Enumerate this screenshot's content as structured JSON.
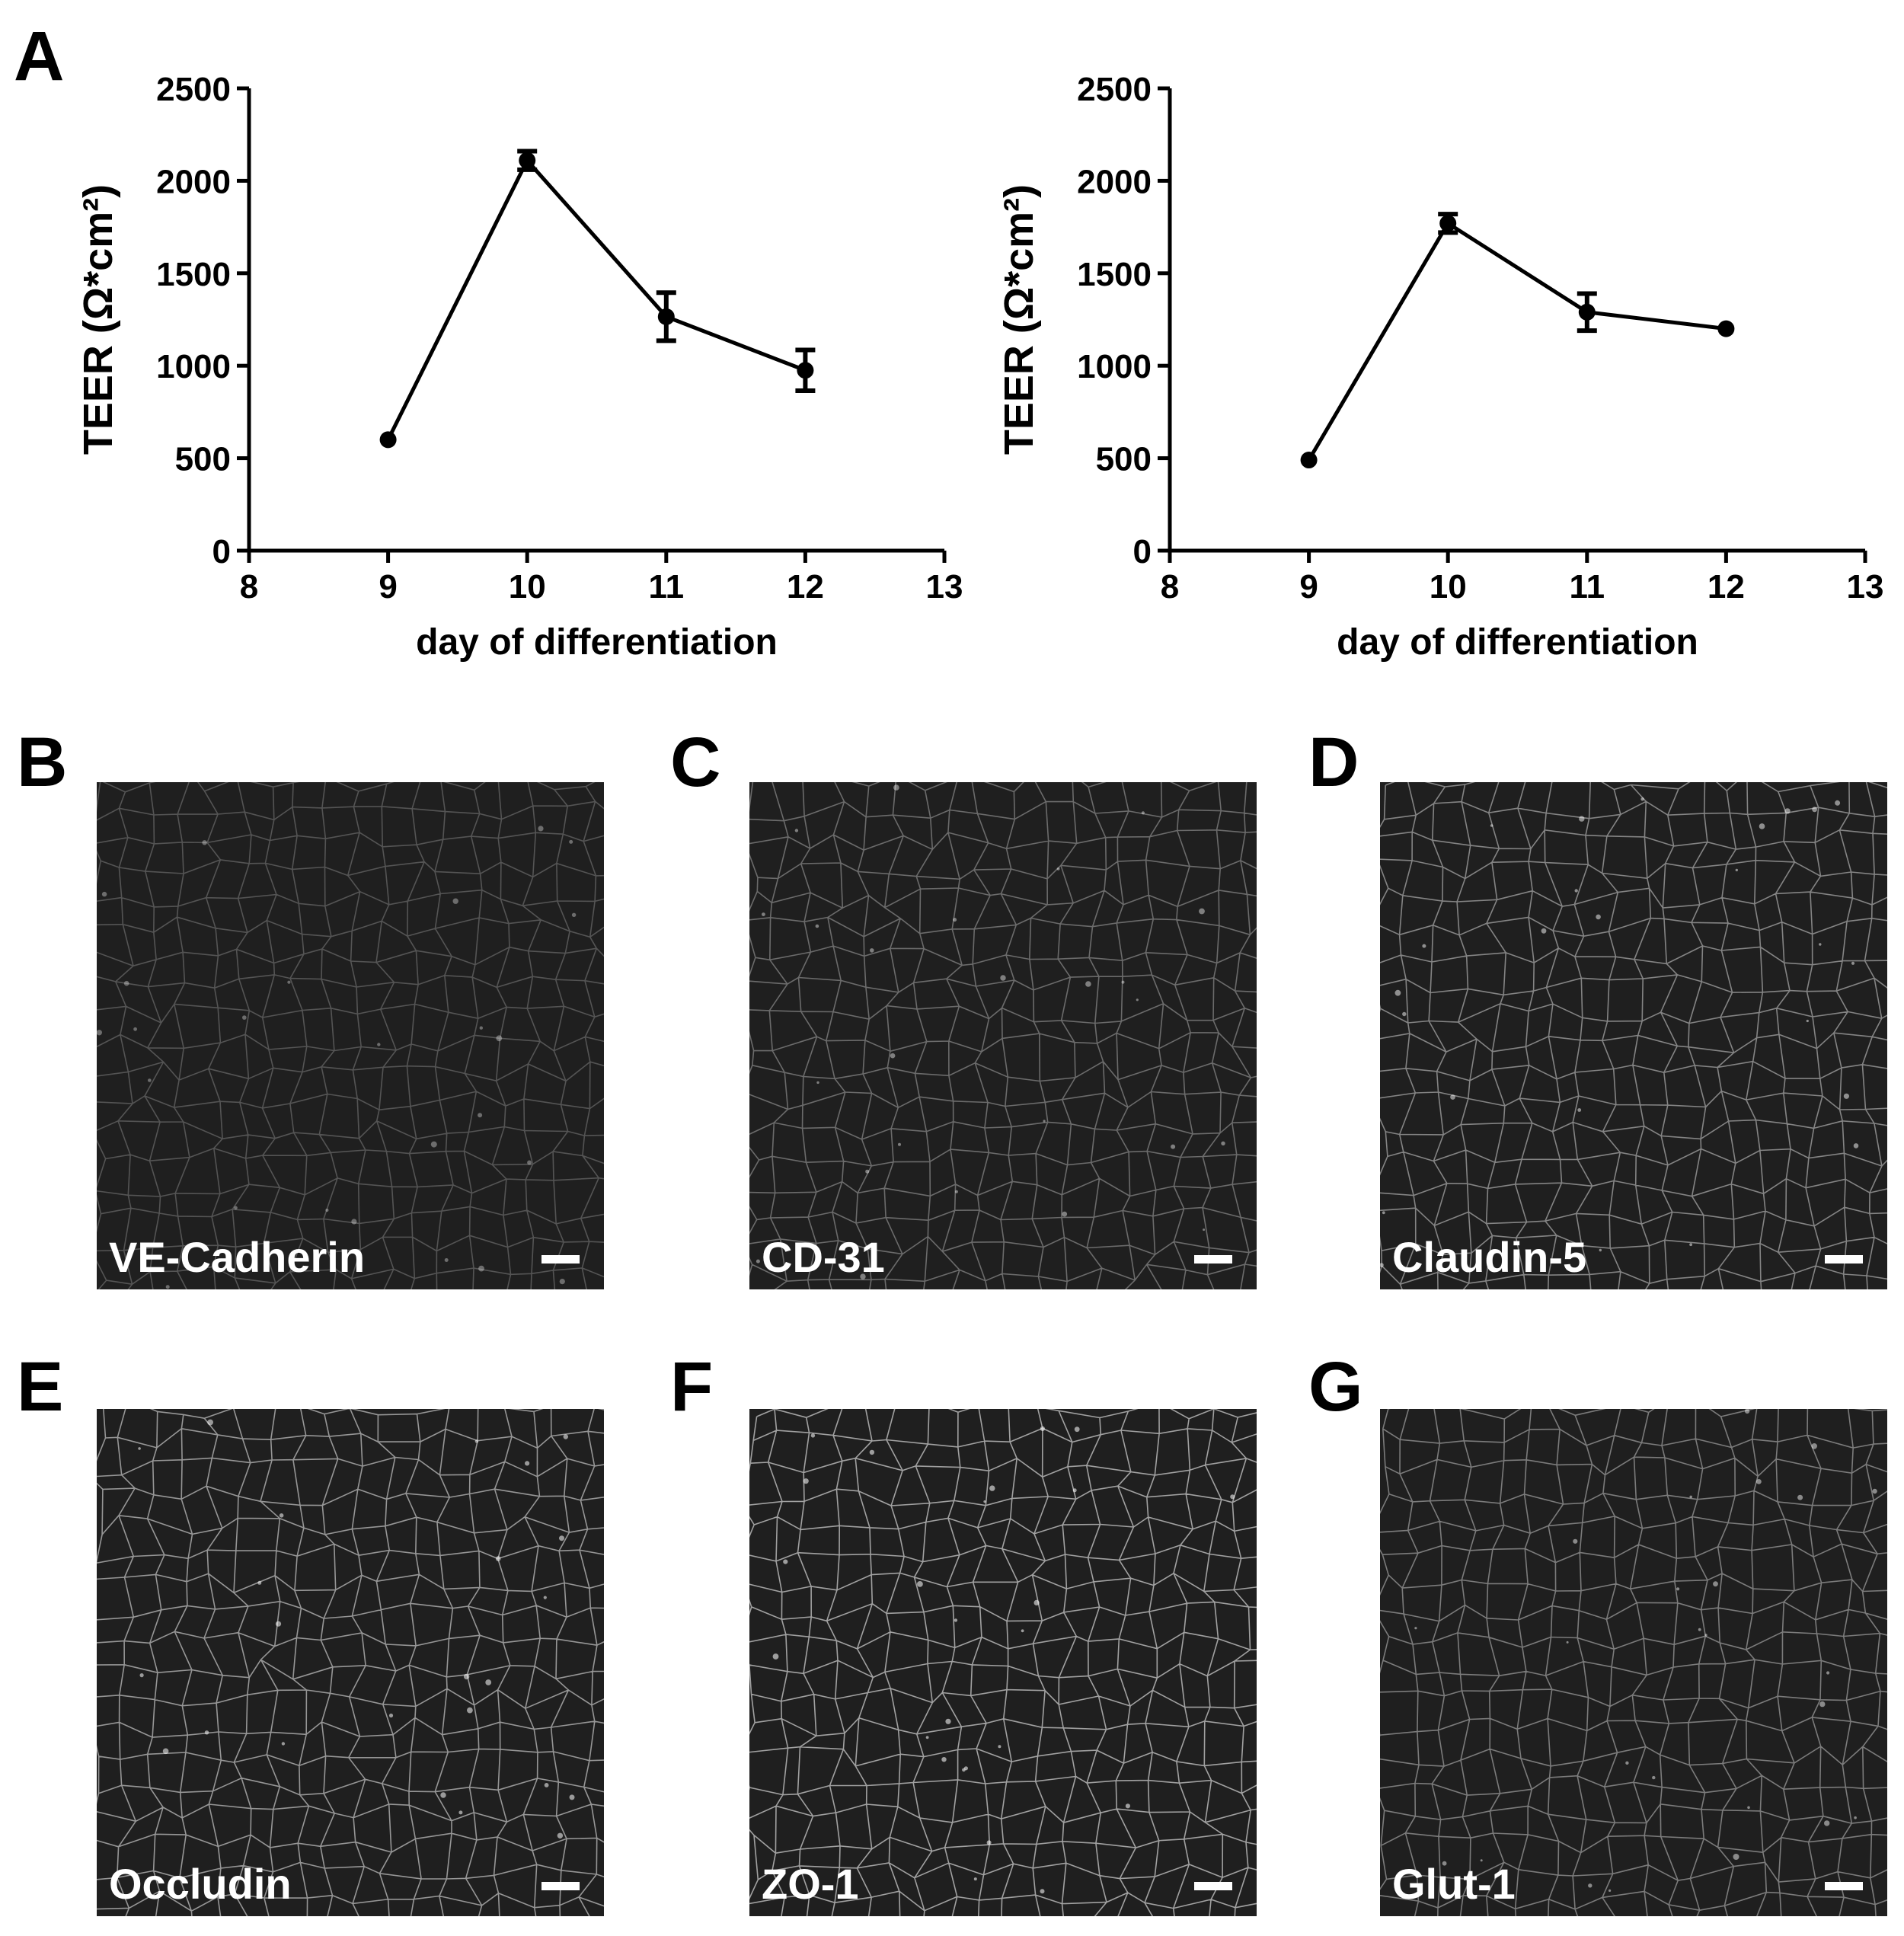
{
  "panel_letters": [
    "A",
    "B",
    "C",
    "D",
    "E",
    "F",
    "G"
  ],
  "chart_data": [
    {
      "type": "line",
      "xlabel": "day of differentiation",
      "ylabel": "TEER (Ω*cm²)",
      "xlim": [
        8,
        13
      ],
      "ylim": [
        0,
        2500
      ],
      "x_ticks": [
        8,
        9,
        10,
        11,
        12,
        13
      ],
      "y_ticks": [
        0,
        500,
        1000,
        1500,
        2000,
        2500
      ],
      "grid": false,
      "series": [
        {
          "x": [
            9,
            10,
            11,
            12
          ],
          "y": [
            600,
            2110,
            1265,
            975
          ],
          "error": [
            0,
            50,
            130,
            110
          ]
        }
      ]
    },
    {
      "type": "line",
      "xlabel": "day of differentiation",
      "ylabel": "TEER (Ω*cm²)",
      "xlim": [
        8,
        13
      ],
      "ylim": [
        0,
        2500
      ],
      "x_ticks": [
        8,
        9,
        10,
        11,
        12,
        13
      ],
      "y_ticks": [
        0,
        500,
        1000,
        1500,
        2000,
        2500
      ],
      "grid": false,
      "series": [
        {
          "x": [
            9,
            10,
            11,
            12
          ],
          "y": [
            490,
            1770,
            1290,
            1200
          ],
          "error": [
            0,
            50,
            100,
            0
          ]
        }
      ]
    }
  ],
  "micrographs": [
    {
      "letter": "B",
      "stain": "VE-Cadherin",
      "brightness": 0.3
    },
    {
      "letter": "C",
      "stain": "CD-31",
      "brightness": 0.45
    },
    {
      "letter": "D",
      "stain": "Claudin-5",
      "brightness": 0.6
    },
    {
      "letter": "E",
      "stain": "Occludin",
      "brightness": 0.7
    },
    {
      "letter": "F",
      "stain": "ZO-1",
      "brightness": 0.75
    },
    {
      "letter": "G",
      "stain": "Glut-1",
      "brightness": 0.55
    }
  ],
  "colors": {
    "ink": "#000000",
    "micrograph_bg": "#1f1f1f",
    "micrograph_label": "#ffffff"
  }
}
